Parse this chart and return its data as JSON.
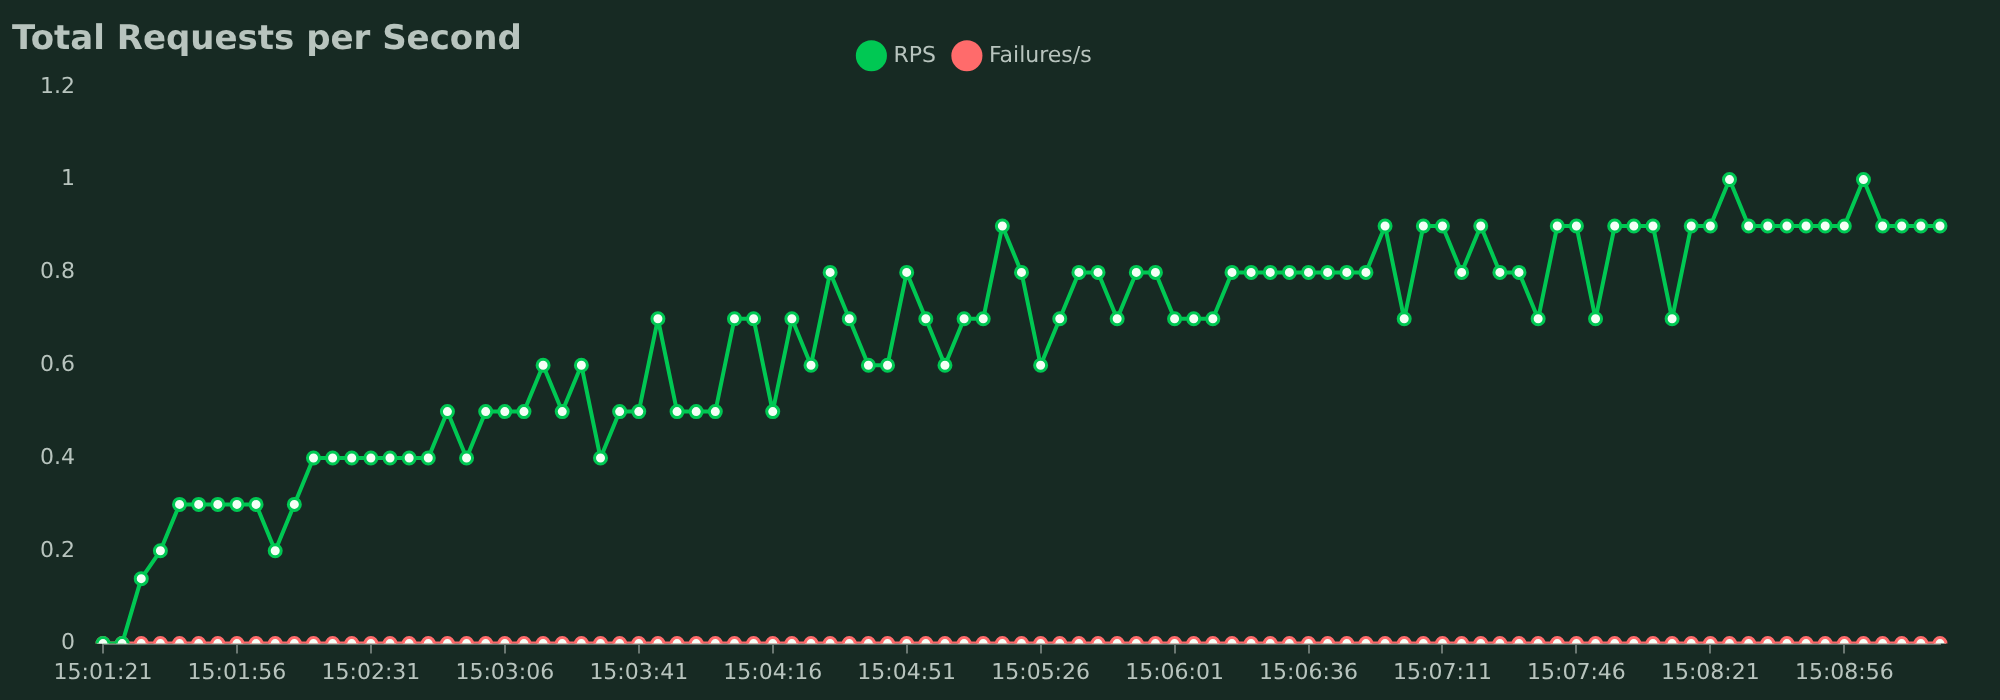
{
  "chart_data": {
    "type": "line",
    "title": "Total Requests per Second",
    "categories": [
      "15:01:21",
      null,
      null,
      null,
      null,
      null,
      null,
      "15:01:56",
      null,
      null,
      null,
      null,
      null,
      null,
      "15:02:31",
      null,
      null,
      null,
      null,
      null,
      null,
      "15:03:06",
      null,
      null,
      null,
      null,
      null,
      null,
      "15:03:41",
      null,
      null,
      null,
      null,
      null,
      null,
      "15:04:16",
      null,
      null,
      null,
      null,
      null,
      null,
      "15:04:51",
      null,
      null,
      null,
      null,
      null,
      null,
      "15:05:26",
      null,
      null,
      null,
      null,
      null,
      null,
      "15:06:01",
      null,
      null,
      null,
      null,
      null,
      null,
      "15:06:36",
      null,
      null,
      null,
      null,
      null,
      null,
      "15:07:11",
      null,
      null,
      null,
      null,
      null,
      null,
      "15:07:46",
      null,
      null,
      null,
      null,
      null,
      null,
      "15:08:21",
      null,
      null,
      null,
      null,
      null,
      null,
      "15:08:56",
      null,
      null,
      null,
      null,
      null
    ],
    "series": [
      {
        "name": "RPS",
        "color": "#00c853",
        "values": [
          0,
          0,
          0.14,
          0.2,
          0.3,
          0.3,
          0.3,
          0.3,
          0.3,
          0.2,
          0.3,
          0.4,
          0.4,
          0.4,
          0.4,
          0.4,
          0.4,
          0.4,
          0.5,
          0.4,
          0.5,
          0.5,
          0.5,
          0.6,
          0.5,
          0.6,
          0.4,
          0.5,
          0.5,
          0.7,
          0.5,
          0.5,
          0.5,
          0.7,
          0.7,
          0.5,
          0.7,
          0.6,
          0.8,
          0.7,
          0.6,
          0.6,
          0.8,
          0.7,
          0.6,
          0.7,
          0.7,
          0.9,
          0.8,
          0.6,
          0.7,
          0.8,
          0.8,
          0.7,
          0.8,
          0.8,
          0.7,
          0.7,
          0.7,
          0.8,
          0.8,
          0.8,
          0.8,
          0.8,
          0.8,
          0.8,
          0.8,
          0.9,
          0.7,
          0.9,
          0.9,
          0.8,
          0.9,
          0.8,
          0.8,
          0.7,
          0.9,
          0.9,
          0.7,
          0.9,
          0.9,
          0.9,
          0.7,
          0.9,
          0.9,
          1,
          0.9,
          0.9,
          0.9,
          0.9,
          0.9,
          0.9,
          1,
          0.9,
          0.9,
          0.9,
          0.9
        ]
      },
      {
        "name": "Failures/s",
        "color": "#ff6b6b",
        "values": [
          0,
          0,
          0,
          0,
          0,
          0,
          0,
          0,
          0,
          0,
          0,
          0,
          0,
          0,
          0,
          0,
          0,
          0,
          0,
          0,
          0,
          0,
          0,
          0,
          0,
          0,
          0,
          0,
          0,
          0,
          0,
          0,
          0,
          0,
          0,
          0,
          0,
          0,
          0,
          0,
          0,
          0,
          0,
          0,
          0,
          0,
          0,
          0,
          0,
          0,
          0,
          0,
          0,
          0,
          0,
          0,
          0,
          0,
          0,
          0,
          0,
          0,
          0,
          0,
          0,
          0,
          0,
          0,
          0,
          0,
          0,
          0,
          0,
          0,
          0,
          0,
          0,
          0,
          0,
          0,
          0,
          0,
          0,
          0,
          0,
          0,
          0,
          0,
          0,
          0,
          0,
          0,
          0,
          0,
          0,
          0,
          0
        ]
      }
    ],
    "ylim": [
      0,
      1.2
    ],
    "yticks": [
      0,
      0.2,
      0.4,
      0.6,
      0.8,
      1,
      1.2
    ],
    "legend": "top",
    "marker": "circle",
    "line_style": "solid"
  }
}
